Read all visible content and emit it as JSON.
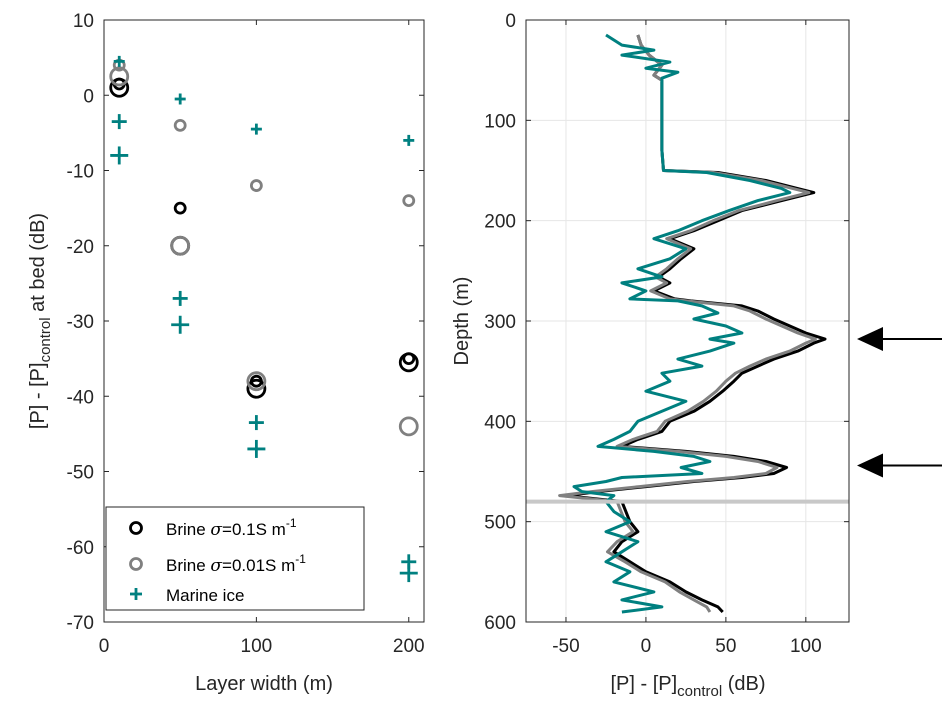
{
  "chart_data": [
    {
      "type": "scatter",
      "xlabel": "Layer width (m)",
      "ylabel_main": "[P] - [P]",
      "ylabel_sub": "control",
      "ylabel_tail": " at bed  (dB)",
      "xlim": [
        0,
        210
      ],
      "ylim": [
        -70,
        10
      ],
      "xticks": [
        "0",
        "100",
        "200"
      ],
      "yticks": [
        "10",
        "0",
        "-10",
        "-20",
        "-30",
        "-40",
        "-50",
        "-60",
        "-70"
      ],
      "grid": false,
      "legend_position": "bottom-left",
      "legend": [
        {
          "text": "Brine ",
          "sigma": "σ",
          "rest": "=0.1S m",
          "sup": "-1",
          "marker": "circle",
          "color": "#000000"
        },
        {
          "text": "Brine ",
          "sigma": "σ",
          "rest": "=0.01S m",
          "sup": "-1",
          "marker": "circle",
          "color": "#808080"
        },
        {
          "text": "Marine ice",
          "sigma": "",
          "rest": "",
          "sup": "",
          "marker": "plus",
          "color": "#008080"
        }
      ],
      "series": [
        {
          "name": "Brine σ=0.1S m-1",
          "color": "#000000",
          "marker": "circle",
          "points": [
            {
              "x": 10,
              "y": 1.5,
              "size": "small"
            },
            {
              "x": 10,
              "y": 1,
              "size": "large"
            },
            {
              "x": 50,
              "y": -15,
              "size": "small"
            },
            {
              "x": 50,
              "y": -20,
              "size": "large"
            },
            {
              "x": 100,
              "y": -38,
              "size": "small"
            },
            {
              "x": 100,
              "y": -39,
              "size": "large"
            },
            {
              "x": 200,
              "y": -35,
              "size": "small"
            },
            {
              "x": 200,
              "y": -35.5,
              "size": "large"
            }
          ]
        },
        {
          "name": "Brine σ=0.01S m-1",
          "color": "#808080",
          "marker": "circle",
          "points": [
            {
              "x": 10,
              "y": 4,
              "size": "small"
            },
            {
              "x": 10,
              "y": 2.5,
              "size": "large"
            },
            {
              "x": 50,
              "y": -4,
              "size": "small"
            },
            {
              "x": 50,
              "y": -20,
              "size": "large"
            },
            {
              "x": 100,
              "y": -12,
              "size": "small"
            },
            {
              "x": 100,
              "y": -38,
              "size": "large"
            },
            {
              "x": 200,
              "y": -14,
              "size": "small"
            },
            {
              "x": 200,
              "y": -44,
              "size": "large"
            }
          ]
        },
        {
          "name": "Marine ice",
          "color": "#008080",
          "marker": "plus",
          "points": [
            {
              "x": 10,
              "y": 4.5,
              "size": "small"
            },
            {
              "x": 10,
              "y": -3.5,
              "size": "medium"
            },
            {
              "x": 10,
              "y": -8,
              "size": "large"
            },
            {
              "x": 50,
              "y": -0.5,
              "size": "small"
            },
            {
              "x": 50,
              "y": -27,
              "size": "medium"
            },
            {
              "x": 50,
              "y": -30.5,
              "size": "large"
            },
            {
              "x": 100,
              "y": -4.5,
              "size": "small"
            },
            {
              "x": 100,
              "y": -43.5,
              "size": "medium"
            },
            {
              "x": 100,
              "y": -47,
              "size": "large"
            },
            {
              "x": 200,
              "y": -6,
              "size": "small"
            },
            {
              "x": 200,
              "y": -62,
              "size": "medium"
            },
            {
              "x": 200,
              "y": -63.5,
              "size": "large"
            }
          ]
        }
      ]
    },
    {
      "type": "line",
      "xlabel_main": "[P] - [P]",
      "xlabel_sub": "control",
      "xlabel_tail": " (dB)",
      "ylabel": "Depth (m)",
      "xlim": [
        -75,
        127
      ],
      "ylim": [
        0,
        600
      ],
      "y_reversed": true,
      "xticks": [
        "-50",
        "0",
        "50",
        "100"
      ],
      "yticks": [
        "0",
        "100",
        "200",
        "300",
        "400",
        "500",
        "600"
      ],
      "grid": true,
      "bed_depth": 480,
      "arrow_depths": [
        318,
        444
      ],
      "series": [
        {
          "name": "",
          "color": "#000000",
          "points": [
            [
              -5,
              15
            ],
            [
              -3,
              25
            ],
            [
              2,
              35
            ],
            [
              10,
              45
            ],
            [
              5,
              55
            ],
            [
              10,
              60
            ],
            [
              10,
              80
            ],
            [
              10,
              100
            ],
            [
              10,
              130
            ],
            [
              11,
              150
            ],
            [
              45,
              152
            ],
            [
              75,
              160
            ],
            [
              95,
              168
            ],
            [
              105,
              172
            ],
            [
              85,
              180
            ],
            [
              60,
              190
            ],
            [
              45,
              200
            ],
            [
              30,
              210
            ],
            [
              15,
              218
            ],
            [
              30,
              228
            ],
            [
              22,
              238
            ],
            [
              15,
              248
            ],
            [
              8,
              256
            ],
            [
              15,
              262
            ],
            [
              5,
              270
            ],
            [
              18,
              278
            ],
            [
              28,
              280
            ],
            [
              60,
              285
            ],
            [
              70,
              290
            ],
            [
              80,
              298
            ],
            [
              90,
              305
            ],
            [
              100,
              312
            ],
            [
              112,
              318
            ],
            [
              105,
              322
            ],
            [
              95,
              330
            ],
            [
              80,
              338
            ],
            [
              70,
              345
            ],
            [
              60,
              352
            ],
            [
              55,
              360
            ],
            [
              48,
              370
            ],
            [
              40,
              380
            ],
            [
              30,
              390
            ],
            [
              15,
              400
            ],
            [
              10,
              410
            ],
            [
              -5,
              418
            ],
            [
              -15,
              425
            ],
            [
              25,
              430
            ],
            [
              55,
              435
            ],
            [
              75,
              440
            ],
            [
              88,
              446
            ],
            [
              80,
              452
            ],
            [
              60,
              456
            ],
            [
              30,
              460
            ],
            [
              0,
              465
            ],
            [
              -30,
              470
            ],
            [
              -50,
              474
            ],
            [
              -15,
              480
            ],
            [
              -10,
              500
            ],
            [
              -5,
              510
            ],
            [
              -15,
              520
            ],
            [
              -20,
              530
            ],
            [
              -10,
              540
            ],
            [
              0,
              550
            ],
            [
              15,
              560
            ],
            [
              25,
              570
            ],
            [
              35,
              578
            ],
            [
              45,
              585
            ],
            [
              48,
              590
            ]
          ]
        },
        {
          "name": "",
          "color": "#808080",
          "points": [
            [
              -5,
              15
            ],
            [
              -3,
              25
            ],
            [
              2,
              35
            ],
            [
              10,
              45
            ],
            [
              5,
              55
            ],
            [
              10,
              60
            ],
            [
              10,
              80
            ],
            [
              10,
              100
            ],
            [
              10,
              130
            ],
            [
              11,
              150
            ],
            [
              42,
              152
            ],
            [
              72,
              160
            ],
            [
              92,
              168
            ],
            [
              102,
              172
            ],
            [
              82,
              180
            ],
            [
              58,
              190
            ],
            [
              42,
              200
            ],
            [
              28,
              210
            ],
            [
              13,
              218
            ],
            [
              28,
              228
            ],
            [
              20,
              238
            ],
            [
              13,
              248
            ],
            [
              6,
              256
            ],
            [
              13,
              262
            ],
            [
              3,
              270
            ],
            [
              15,
              278
            ],
            [
              25,
              280
            ],
            [
              55,
              285
            ],
            [
              65,
              290
            ],
            [
              75,
              298
            ],
            [
              85,
              305
            ],
            [
              95,
              312
            ],
            [
              106,
              318
            ],
            [
              100,
              322
            ],
            [
              90,
              330
            ],
            [
              75,
              338
            ],
            [
              65,
              345
            ],
            [
              56,
              352
            ],
            [
              50,
              360
            ],
            [
              44,
              370
            ],
            [
              36,
              380
            ],
            [
              26,
              390
            ],
            [
              12,
              400
            ],
            [
              7,
              410
            ],
            [
              -8,
              418
            ],
            [
              -18,
              425
            ],
            [
              20,
              430
            ],
            [
              50,
              435
            ],
            [
              70,
              440
            ],
            [
              82,
              446
            ],
            [
              75,
              452
            ],
            [
              55,
              456
            ],
            [
              26,
              460
            ],
            [
              -4,
              465
            ],
            [
              -34,
              470
            ],
            [
              -54,
              474
            ],
            [
              -18,
              480
            ],
            [
              -13,
              500
            ],
            [
              -8,
              510
            ],
            [
              -18,
              520
            ],
            [
              -24,
              530
            ],
            [
              -13,
              540
            ],
            [
              -3,
              550
            ],
            [
              12,
              560
            ],
            [
              21,
              570
            ],
            [
              30,
              578
            ],
            [
              38,
              585
            ],
            [
              40,
              590
            ]
          ]
        },
        {
          "name": "",
          "color": "#008080",
          "points": [
            [
              -25,
              15
            ],
            [
              -15,
              25
            ],
            [
              5,
              30
            ],
            [
              -15,
              35
            ],
            [
              15,
              42
            ],
            [
              0,
              48
            ],
            [
              20,
              52
            ],
            [
              10,
              58
            ],
            [
              10,
              80
            ],
            [
              10,
              100
            ],
            [
              10,
              130
            ],
            [
              11,
              150
            ],
            [
              38,
              152
            ],
            [
              65,
              160
            ],
            [
              85,
              168
            ],
            [
              90,
              172
            ],
            [
              70,
              180
            ],
            [
              52,
              190
            ],
            [
              35,
              200
            ],
            [
              20,
              210
            ],
            [
              5,
              218
            ],
            [
              25,
              228
            ],
            [
              15,
              238
            ],
            [
              -5,
              248
            ],
            [
              10,
              256
            ],
            [
              -15,
              262
            ],
            [
              0,
              270
            ],
            [
              -10,
              278
            ],
            [
              20,
              280
            ],
            [
              35,
              285
            ],
            [
              45,
              292
            ],
            [
              30,
              298
            ],
            [
              50,
              305
            ],
            [
              60,
              312
            ],
            [
              40,
              318
            ],
            [
              55,
              322
            ],
            [
              40,
              330
            ],
            [
              20,
              338
            ],
            [
              35,
              345
            ],
            [
              10,
              352
            ],
            [
              15,
              360
            ],
            [
              0,
              370
            ],
            [
              25,
              380
            ],
            [
              10,
              390
            ],
            [
              -5,
              400
            ],
            [
              -10,
              410
            ],
            [
              -20,
              418
            ],
            [
              -30,
              425
            ],
            [
              5,
              430
            ],
            [
              30,
              435
            ],
            [
              40,
              440
            ],
            [
              22,
              446
            ],
            [
              35,
              452
            ],
            [
              -15,
              456
            ],
            [
              -25,
              460
            ],
            [
              -45,
              465
            ],
            [
              -40,
              470
            ],
            [
              -20,
              474
            ],
            [
              -25,
              480
            ],
            [
              -20,
              490
            ],
            [
              -10,
              500
            ],
            [
              -25,
              510
            ],
            [
              -5,
              520
            ],
            [
              -15,
              530
            ],
            [
              -25,
              540
            ],
            [
              -10,
              550
            ],
            [
              -20,
              560
            ],
            [
              5,
              570
            ],
            [
              -15,
              578
            ],
            [
              10,
              585
            ],
            [
              -15,
              590
            ]
          ]
        }
      ]
    }
  ]
}
